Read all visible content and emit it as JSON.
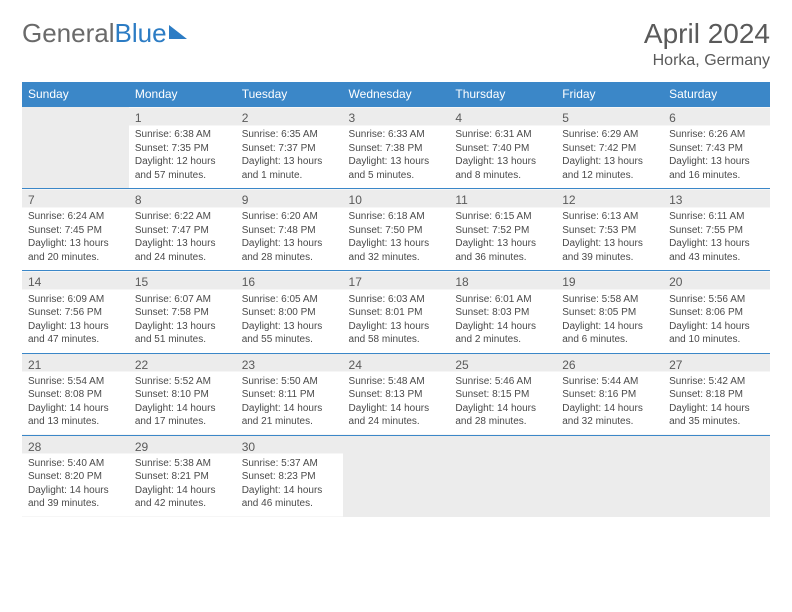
{
  "logo": {
    "text_a": "General",
    "text_b": "Blue"
  },
  "title": "April 2024",
  "location": "Horka, Germany",
  "weekday_labels": [
    "Sunday",
    "Monday",
    "Tuesday",
    "Wednesday",
    "Thursday",
    "Friday",
    "Saturday"
  ],
  "colors": {
    "header_bg": "#3b87c8",
    "header_text": "#ffffff",
    "shaded_bg": "#ececec",
    "border": "#3b87c8",
    "text": "#4a4a4a",
    "title_text": "#5a5a5a"
  },
  "typography": {
    "month_title_pt": 28,
    "location_pt": 16,
    "weekday_pt": 12,
    "daynum_pt": 12,
    "cell_text_pt": 10
  },
  "grid": {
    "rows": 5,
    "cols": 7,
    "first_weekday_index": 1,
    "days_in_month": 30
  },
  "days": {
    "1": {
      "sunrise": "6:38 AM",
      "sunset": "7:35 PM",
      "daylight": "12 hours and 57 minutes."
    },
    "2": {
      "sunrise": "6:35 AM",
      "sunset": "7:37 PM",
      "daylight": "13 hours and 1 minute."
    },
    "3": {
      "sunrise": "6:33 AM",
      "sunset": "7:38 PM",
      "daylight": "13 hours and 5 minutes."
    },
    "4": {
      "sunrise": "6:31 AM",
      "sunset": "7:40 PM",
      "daylight": "13 hours and 8 minutes."
    },
    "5": {
      "sunrise": "6:29 AM",
      "sunset": "7:42 PM",
      "daylight": "13 hours and 12 minutes."
    },
    "6": {
      "sunrise": "6:26 AM",
      "sunset": "7:43 PM",
      "daylight": "13 hours and 16 minutes."
    },
    "7": {
      "sunrise": "6:24 AM",
      "sunset": "7:45 PM",
      "daylight": "13 hours and 20 minutes."
    },
    "8": {
      "sunrise": "6:22 AM",
      "sunset": "7:47 PM",
      "daylight": "13 hours and 24 minutes."
    },
    "9": {
      "sunrise": "6:20 AM",
      "sunset": "7:48 PM",
      "daylight": "13 hours and 28 minutes."
    },
    "10": {
      "sunrise": "6:18 AM",
      "sunset": "7:50 PM",
      "daylight": "13 hours and 32 minutes."
    },
    "11": {
      "sunrise": "6:15 AM",
      "sunset": "7:52 PM",
      "daylight": "13 hours and 36 minutes."
    },
    "12": {
      "sunrise": "6:13 AM",
      "sunset": "7:53 PM",
      "daylight": "13 hours and 39 minutes."
    },
    "13": {
      "sunrise": "6:11 AM",
      "sunset": "7:55 PM",
      "daylight": "13 hours and 43 minutes."
    },
    "14": {
      "sunrise": "6:09 AM",
      "sunset": "7:56 PM",
      "daylight": "13 hours and 47 minutes."
    },
    "15": {
      "sunrise": "6:07 AM",
      "sunset": "7:58 PM",
      "daylight": "13 hours and 51 minutes."
    },
    "16": {
      "sunrise": "6:05 AM",
      "sunset": "8:00 PM",
      "daylight": "13 hours and 55 minutes."
    },
    "17": {
      "sunrise": "6:03 AM",
      "sunset": "8:01 PM",
      "daylight": "13 hours and 58 minutes."
    },
    "18": {
      "sunrise": "6:01 AM",
      "sunset": "8:03 PM",
      "daylight": "14 hours and 2 minutes."
    },
    "19": {
      "sunrise": "5:58 AM",
      "sunset": "8:05 PM",
      "daylight": "14 hours and 6 minutes."
    },
    "20": {
      "sunrise": "5:56 AM",
      "sunset": "8:06 PM",
      "daylight": "14 hours and 10 minutes."
    },
    "21": {
      "sunrise": "5:54 AM",
      "sunset": "8:08 PM",
      "daylight": "14 hours and 13 minutes."
    },
    "22": {
      "sunrise": "5:52 AM",
      "sunset": "8:10 PM",
      "daylight": "14 hours and 17 minutes."
    },
    "23": {
      "sunrise": "5:50 AM",
      "sunset": "8:11 PM",
      "daylight": "14 hours and 21 minutes."
    },
    "24": {
      "sunrise": "5:48 AM",
      "sunset": "8:13 PM",
      "daylight": "14 hours and 24 minutes."
    },
    "25": {
      "sunrise": "5:46 AM",
      "sunset": "8:15 PM",
      "daylight": "14 hours and 28 minutes."
    },
    "26": {
      "sunrise": "5:44 AM",
      "sunset": "8:16 PM",
      "daylight": "14 hours and 32 minutes."
    },
    "27": {
      "sunrise": "5:42 AM",
      "sunset": "8:18 PM",
      "daylight": "14 hours and 35 minutes."
    },
    "28": {
      "sunrise": "5:40 AM",
      "sunset": "8:20 PM",
      "daylight": "14 hours and 39 minutes."
    },
    "29": {
      "sunrise": "5:38 AM",
      "sunset": "8:21 PM",
      "daylight": "14 hours and 42 minutes."
    },
    "30": {
      "sunrise": "5:37 AM",
      "sunset": "8:23 PM",
      "daylight": "14 hours and 46 minutes."
    }
  },
  "labels": {
    "sunrise_prefix": "Sunrise: ",
    "sunset_prefix": "Sunset: ",
    "daylight_prefix": "Daylight: "
  }
}
